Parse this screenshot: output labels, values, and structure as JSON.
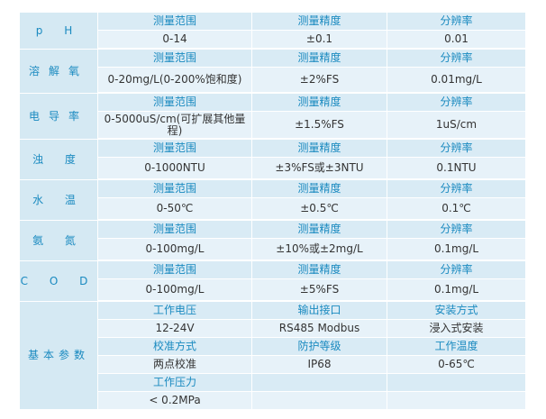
{
  "colors": {
    "header_text": "#1a8ac0",
    "label_bg": "#d5e9f3",
    "header_bg": "#d9ebf5",
    "value_bg": "#e7f2f9"
  },
  "headers": {
    "range": "测量范围",
    "accuracy": "测量精度",
    "resolution": "分辨率"
  },
  "sensors": [
    {
      "name": "p H",
      "range": "0-14",
      "accuracy": "±0.1",
      "resolution": "0.01"
    },
    {
      "name": "溶解氧",
      "range": "0-20mg/L(0-200%饱和度)",
      "accuracy": "±2%FS",
      "resolution": "0.01mg/L"
    },
    {
      "name": "电导率",
      "range": "0-5000uS/cm(可扩展其他量程)",
      "accuracy": "±1.5%FS",
      "resolution": "1uS/cm"
    },
    {
      "name": "浊 度",
      "range": "0-1000NTU",
      "accuracy": "±3%FS或±3NTU",
      "resolution": "0.1NTU"
    },
    {
      "name": "水 温",
      "range": "0-50℃",
      "accuracy": "±0.5℃",
      "resolution": "0.1℃"
    },
    {
      "name": "氨 氮",
      "range": "0-100mg/L",
      "accuracy": "±10%或±2mg/L",
      "resolution": "0.1mg/L"
    },
    {
      "name": "C O D",
      "range": "0-100mg/L",
      "accuracy": "±5%FS",
      "resolution": "0.1mg/L"
    }
  ],
  "basic": {
    "name": "基本参数",
    "rows": [
      {
        "h": [
          "工作电压",
          "输出接口",
          "安装方式"
        ],
        "v": [
          "12-24V",
          "RS485 Modbus",
          "浸入式安装"
        ]
      },
      {
        "h": [
          "校准方式",
          "防护等级",
          "工作温度"
        ],
        "v": [
          "两点校准",
          "IP68",
          "0-65℃"
        ]
      },
      {
        "h": [
          "工作压力",
          "",
          ""
        ],
        "v": [
          "< 0.2MPa",
          "",
          ""
        ]
      }
    ]
  }
}
